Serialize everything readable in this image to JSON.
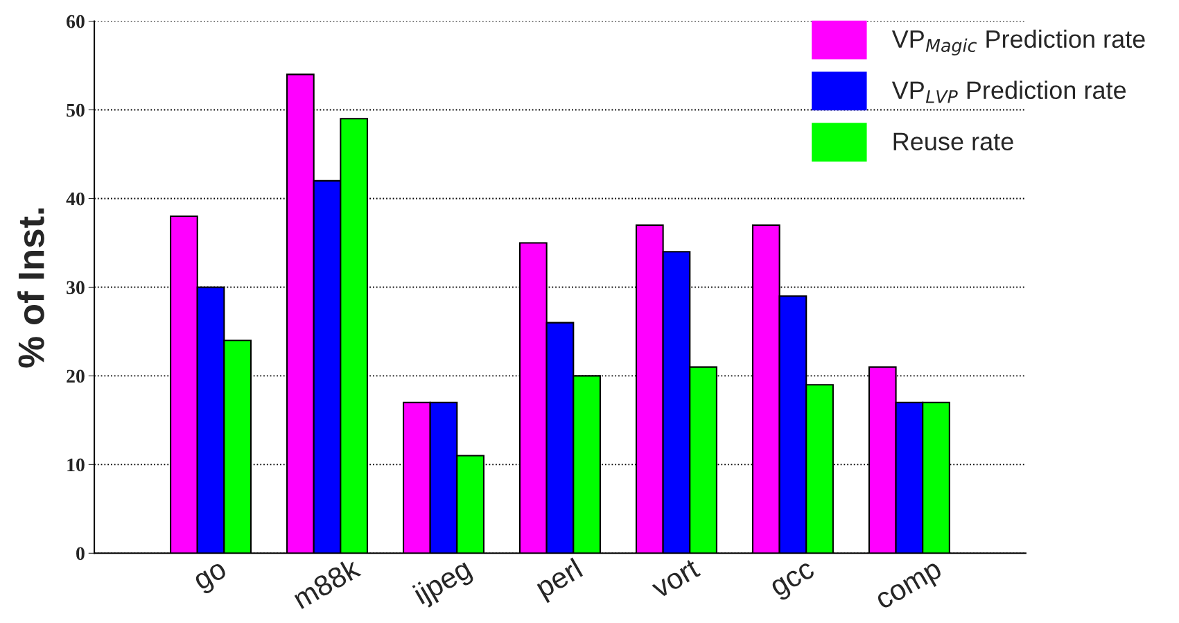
{
  "chart_data": {
    "type": "bar",
    "ylabel": "% of Inst.",
    "categories": [
      "go",
      "m88k",
      "ijpeg",
      "perl",
      "vort",
      "gcc",
      "comp"
    ],
    "series": [
      {
        "name": "VP$_{Magic}$ Prediction rate",
        "color": "#ff00ff",
        "values": [
          38,
          54,
          17,
          35,
          37,
          37,
          21
        ]
      },
      {
        "name": "VP$_{LVP}$ Prediction rate",
        "color": "#0000ff",
        "values": [
          30,
          42,
          17,
          26,
          34,
          29,
          17
        ]
      },
      {
        "name": "Reuse rate",
        "color": "#00ff00",
        "values": [
          24,
          49,
          11,
          20,
          21,
          19,
          17
        ]
      }
    ],
    "ylim": [
      0,
      60
    ],
    "yticks": [
      0,
      10,
      20,
      30,
      40,
      50,
      60
    ],
    "grid": "y",
    "legend": "top right"
  }
}
